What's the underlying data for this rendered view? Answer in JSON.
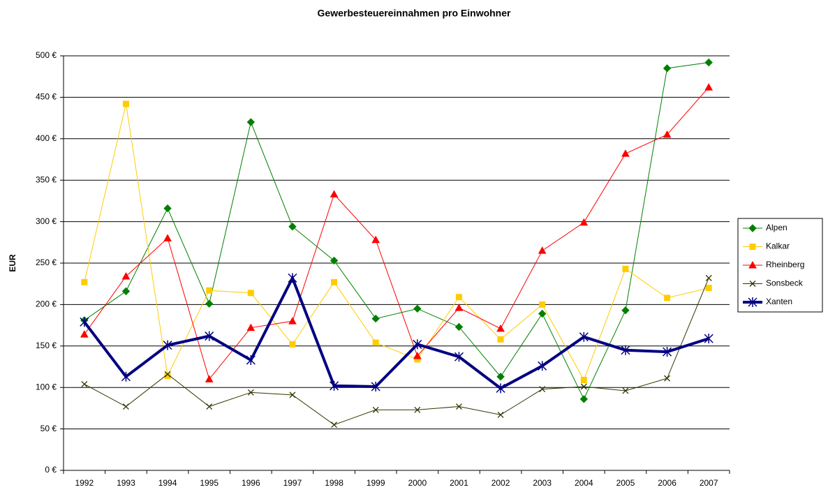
{
  "chart_data": {
    "type": "line",
    "title": "Gewerbesteuereinnahmen pro Einwohner",
    "y_label": "EUR",
    "categories": [
      "1992",
      "1993",
      "1994",
      "1995",
      "1996",
      "1997",
      "1998",
      "1999",
      "2000",
      "2001",
      "2002",
      "2003",
      "2004",
      "2005",
      "2006",
      "2007"
    ],
    "ylim": [
      0,
      500
    ],
    "yticks": [
      {
        "value": 0,
        "label": "0 €"
      },
      {
        "value": 50,
        "label": "50 €"
      },
      {
        "value": 100,
        "label": "100 €"
      },
      {
        "value": 150,
        "label": "150 €"
      },
      {
        "value": 200,
        "label": "200 €"
      },
      {
        "value": 250,
        "label": "250 €"
      },
      {
        "value": 300,
        "label": "300 €"
      },
      {
        "value": 350,
        "label": "350 €"
      },
      {
        "value": 400,
        "label": "400 €"
      },
      {
        "value": 450,
        "label": "450 €"
      },
      {
        "value": 500,
        "label": "500 €"
      }
    ],
    "grid": true,
    "legend": "right",
    "series": [
      {
        "name": "Alpen",
        "color": "#008000",
        "marker": "diamond",
        "line_width": 1,
        "values": [
          181,
          216,
          316,
          201,
          420,
          294,
          253,
          183,
          195,
          173,
          113,
          189,
          86,
          193,
          485,
          492
        ]
      },
      {
        "name": "Kalkar",
        "color": "#ffcc00",
        "marker": "square",
        "line_width": 1,
        "values": [
          227,
          442,
          114,
          217,
          214,
          152,
          227,
          154,
          134,
          209,
          158,
          200,
          109,
          243,
          208,
          220
        ]
      },
      {
        "name": "Rheinberg",
        "color": "#ff0000",
        "marker": "triangle",
        "line_width": 1,
        "values": [
          164,
          234,
          280,
          110,
          172,
          180,
          333,
          278,
          138,
          196,
          171,
          265,
          299,
          382,
          405,
          462
        ]
      },
      {
        "name": "Sonsbeck",
        "color": "#333300",
        "marker": "x",
        "line_width": 1,
        "values": [
          104,
          77,
          116,
          77,
          94,
          91,
          55,
          73,
          73,
          77,
          67,
          98,
          101,
          96,
          111,
          232
        ]
      },
      {
        "name": "Xanten",
        "color": "#000080",
        "marker": "star",
        "line_width": 4,
        "values": [
          179,
          113,
          151,
          162,
          133,
          232,
          102,
          101,
          152,
          137,
          99,
          126,
          161,
          145,
          143,
          159
        ]
      }
    ]
  }
}
